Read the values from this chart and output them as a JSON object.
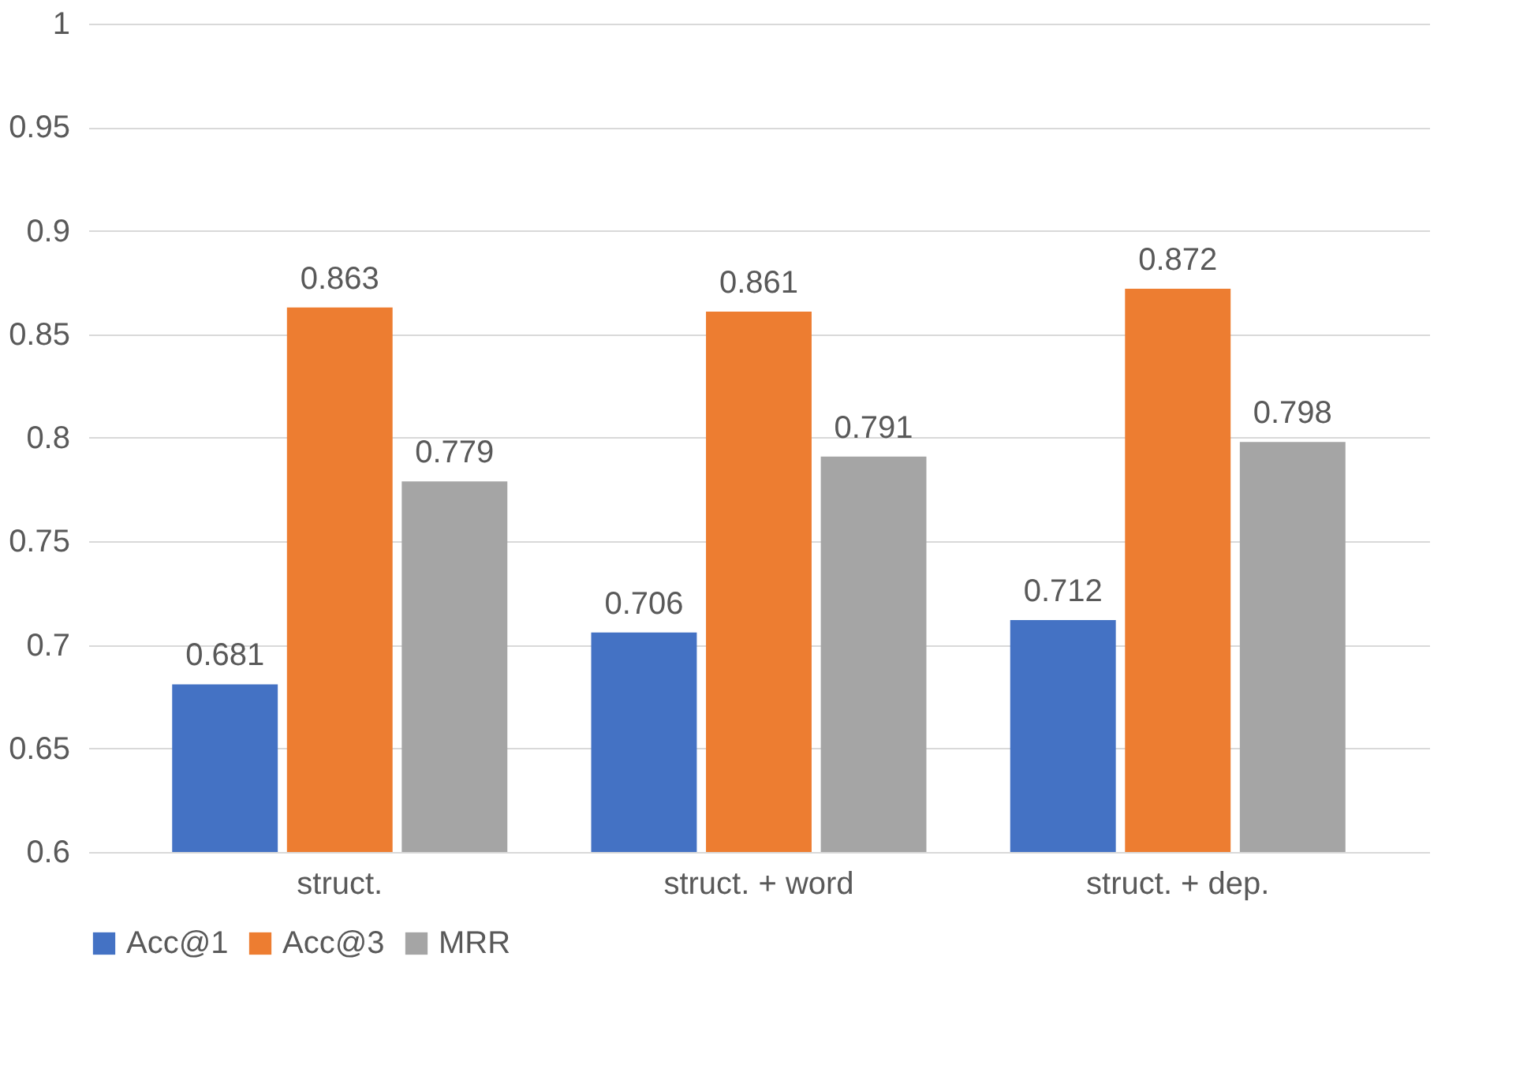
{
  "chart_data": {
    "type": "bar",
    "categories": [
      "struct.",
      "struct. + word",
      "struct. + dep."
    ],
    "series": [
      {
        "name": "Acc@1",
        "color": "#4472c4",
        "values": [
          0.681,
          0.706,
          0.712
        ]
      },
      {
        "name": "Acc@3",
        "color": "#ed7d31",
        "values": [
          0.863,
          0.861,
          0.872
        ]
      },
      {
        "name": "MRR",
        "color": "#a5a5a5",
        "values": [
          0.779,
          0.791,
          0.798
        ]
      }
    ],
    "ylim": [
      0.6,
      1
    ],
    "yticks": [
      0.6,
      0.65,
      0.7,
      0.75,
      0.8,
      0.85,
      0.9,
      0.95,
      1
    ],
    "grid": "y",
    "legend": "bottom",
    "data_labels": true
  }
}
